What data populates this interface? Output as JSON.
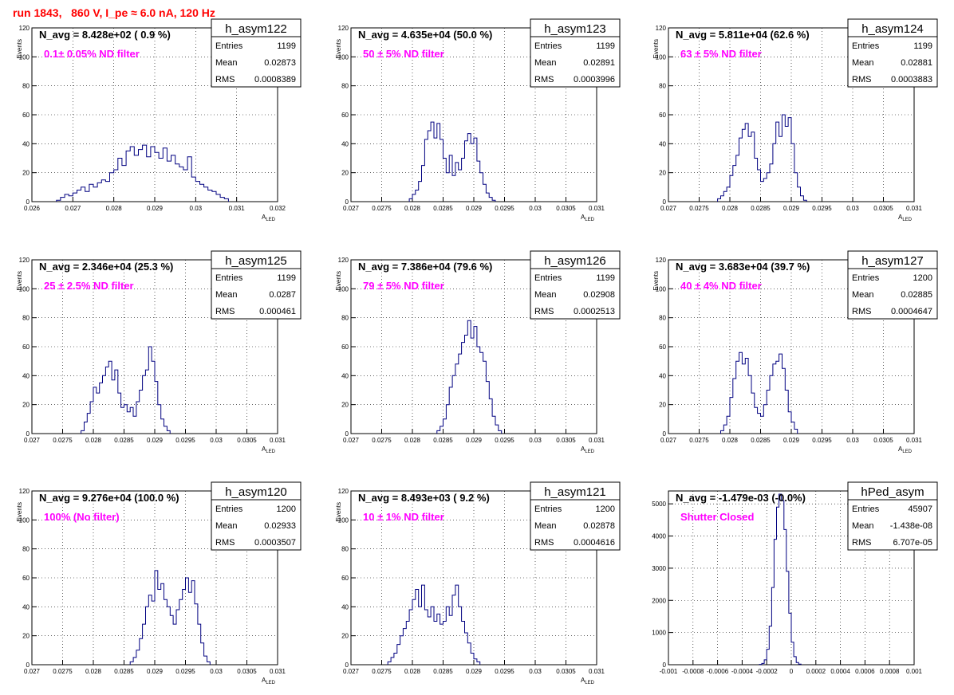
{
  "page": {
    "title": "run 1843,   860 V, I_pe ≈ 6.0 nA, 120 Hz"
  },
  "colors": {
    "background": "#ffffff",
    "hist_line": "#000080",
    "grid": "#000000",
    "annotation": "#ff00ff",
    "title": "#ff0000",
    "text": "#000000"
  },
  "stats_labels": {
    "entries": "Entries",
    "mean": "Mean",
    "rms": "RMS"
  },
  "chart_data": [
    {
      "type": "histogram",
      "name": "h_asym122",
      "navg": "N_avg = 8.428e+02 ( 0.9 %)",
      "note": "0.1± 0.05% ND filter",
      "entries": "1199",
      "mean": "0.02873",
      "rms": "0.0008389",
      "xlabel": "A",
      "xlabel_sub": "LED",
      "ylabel": "Events",
      "xlim": [
        0.026,
        0.032
      ],
      "ylim": [
        0,
        120
      ],
      "xticks": [
        0.026,
        0.027,
        0.028,
        0.029,
        0.03,
        0.031,
        0.032
      ],
      "xtick_labels": [
        "0.026",
        "0.027",
        "0.028",
        "0.029",
        "0.03",
        "0.031",
        "0.032"
      ],
      "yticks": [
        0,
        20,
        40,
        60,
        80,
        100,
        120
      ],
      "ytick_labels": [
        "0",
        "20",
        "40",
        "60",
        "80",
        "100",
        "120"
      ],
      "grid": true,
      "bin_start": 0.0266,
      "bin_width": 0.0001,
      "counts": [
        1,
        3,
        5,
        4,
        6,
        8,
        10,
        7,
        12,
        10,
        13,
        15,
        14,
        20,
        22,
        30,
        25,
        35,
        38,
        32,
        36,
        39,
        31,
        38,
        34,
        30,
        37,
        28,
        32,
        26,
        24,
        22,
        31,
        17,
        14,
        12,
        10,
        8,
        7,
        5,
        3,
        2
      ]
    },
    {
      "type": "histogram",
      "name": "h_asym123",
      "navg": "N_avg = 4.635e+04 (50.0 %)",
      "note": "50 ± 5% ND filter",
      "entries": "1199",
      "mean": "0.02891",
      "rms": "0.0003996",
      "xlabel": "A",
      "xlabel_sub": "LED",
      "ylabel": "Events",
      "xlim": [
        0.027,
        0.031
      ],
      "ylim": [
        0,
        120
      ],
      "xticks": [
        0.027,
        0.0275,
        0.028,
        0.0285,
        0.029,
        0.0295,
        0.03,
        0.0305,
        0.031
      ],
      "xtick_labels": [
        "0.027",
        "0.0275",
        "0.028",
        "0.0285",
        "0.029",
        "0.0295",
        "0.03",
        "0.0305",
        "0.031"
      ],
      "yticks": [
        0,
        20,
        40,
        60,
        80,
        100,
        120
      ],
      "ytick_labels": [
        "0",
        "20",
        "40",
        "60",
        "80",
        "100",
        "120"
      ],
      "grid": true,
      "bin_start": 0.02795,
      "bin_width": 5e-05,
      "counts": [
        2,
        5,
        8,
        14,
        25,
        43,
        49,
        55,
        44,
        54,
        43,
        30,
        20,
        32,
        18,
        27,
        22,
        30,
        42,
        47,
        40,
        44,
        28,
        20,
        12,
        6,
        3,
        1
      ]
    },
    {
      "type": "histogram",
      "name": "h_asym124",
      "navg": "N_avg = 5.811e+04 (62.6 %)",
      "note": "63 ± 5% ND filter",
      "entries": "1199",
      "mean": "0.02881",
      "rms": "0.0003883",
      "xlabel": "A",
      "xlabel_sub": "LED",
      "ylabel": "Events",
      "xlim": [
        0.027,
        0.031
      ],
      "ylim": [
        0,
        120
      ],
      "xticks": [
        0.027,
        0.0275,
        0.028,
        0.0285,
        0.029,
        0.0295,
        0.03,
        0.0305,
        0.031
      ],
      "xtick_labels": [
        "0.027",
        "0.0275",
        "0.028",
        "0.0285",
        "0.029",
        "0.0295",
        "0.03",
        "0.0305",
        "0.031"
      ],
      "yticks": [
        0,
        20,
        40,
        60,
        80,
        100,
        120
      ],
      "ytick_labels": [
        "0",
        "20",
        "40",
        "60",
        "80",
        "100",
        "120"
      ],
      "grid": true,
      "bin_start": 0.0278,
      "bin_width": 5e-05,
      "counts": [
        2,
        4,
        7,
        10,
        18,
        25,
        32,
        44,
        50,
        54,
        45,
        48,
        30,
        22,
        14,
        16,
        20,
        26,
        40,
        55,
        45,
        60,
        52,
        58,
        40,
        20,
        10,
        4,
        1
      ]
    },
    {
      "type": "histogram",
      "name": "h_asym125",
      "navg": "N_avg = 2.346e+04 (25.3 %)",
      "note": "25 ± 2.5% ND filter",
      "entries": "1199",
      "mean": "0.0287",
      "rms": "0.000461",
      "xlabel": "A",
      "xlabel_sub": "LED",
      "ylabel": "Events",
      "xlim": [
        0.027,
        0.031
      ],
      "ylim": [
        0,
        120
      ],
      "xticks": [
        0.027,
        0.0275,
        0.028,
        0.0285,
        0.029,
        0.0295,
        0.03,
        0.0305,
        0.031
      ],
      "xtick_labels": [
        "0.027",
        "0.0275",
        "0.028",
        "0.0285",
        "0.029",
        "0.0295",
        "0.03",
        "0.0305",
        "0.031"
      ],
      "yticks": [
        0,
        20,
        40,
        60,
        80,
        100,
        120
      ],
      "ytick_labels": [
        "0",
        "20",
        "40",
        "60",
        "80",
        "100",
        "120"
      ],
      "grid": true,
      "bin_start": 0.0278,
      "bin_width": 5e-05,
      "counts": [
        2,
        8,
        14,
        22,
        32,
        28,
        35,
        40,
        46,
        50,
        37,
        44,
        28,
        18,
        20,
        15,
        18,
        12,
        22,
        30,
        40,
        44,
        60,
        50,
        36,
        20,
        10,
        5,
        2
      ]
    },
    {
      "type": "histogram",
      "name": "h_asym126",
      "navg": "N_avg = 7.386e+04 (79.6 %)",
      "note": "79 ± 5% ND filter",
      "entries": "1199",
      "mean": "0.02908",
      "rms": "0.0002513",
      "xlabel": "A",
      "xlabel_sub": "LED",
      "ylabel": "Events",
      "xlim": [
        0.027,
        0.031
      ],
      "ylim": [
        0,
        120
      ],
      "xticks": [
        0.027,
        0.0275,
        0.028,
        0.0285,
        0.029,
        0.0295,
        0.03,
        0.0305,
        0.031
      ],
      "xtick_labels": [
        "0.027",
        "0.0275",
        "0.028",
        "0.0285",
        "0.029",
        "0.0295",
        "0.03",
        "0.0305",
        "0.031"
      ],
      "yticks": [
        0,
        20,
        40,
        60,
        80,
        100,
        120
      ],
      "ytick_labels": [
        "0",
        "20",
        "40",
        "60",
        "80",
        "100",
        "120"
      ],
      "grid": true,
      "bin_start": 0.0284,
      "bin_width": 5e-05,
      "counts": [
        2,
        5,
        10,
        20,
        32,
        40,
        48,
        55,
        63,
        68,
        78,
        66,
        74,
        60,
        56,
        50,
        36,
        24,
        12,
        6,
        2
      ]
    },
    {
      "type": "histogram",
      "name": "h_asym127",
      "navg": "N_avg = 3.683e+04 (39.7 %)",
      "note": "40 ± 4% ND filter",
      "entries": "1200",
      "mean": "0.02885",
      "rms": "0.0004647",
      "xlabel": "A",
      "xlabel_sub": "LED",
      "ylabel": "Events",
      "xlim": [
        0.027,
        0.031
      ],
      "ylim": [
        0,
        120
      ],
      "xticks": [
        0.027,
        0.0275,
        0.028,
        0.0285,
        0.029,
        0.0295,
        0.03,
        0.0305,
        0.031
      ],
      "xtick_labels": [
        "0.027",
        "0.0275",
        "0.028",
        "0.0285",
        "0.029",
        "0.0295",
        "0.03",
        "0.0305",
        "0.031"
      ],
      "yticks": [
        0,
        20,
        40,
        60,
        80,
        100,
        120
      ],
      "ytick_labels": [
        "0",
        "20",
        "40",
        "60",
        "80",
        "100",
        "120"
      ],
      "grid": true,
      "bin_start": 0.02785,
      "bin_width": 5e-05,
      "counts": [
        2,
        6,
        12,
        25,
        38,
        50,
        56,
        48,
        52,
        40,
        28,
        18,
        14,
        12,
        20,
        30,
        40,
        48,
        50,
        55,
        45,
        30,
        15,
        8,
        3
      ]
    },
    {
      "type": "histogram",
      "name": "h_asym120",
      "navg": "N_avg = 9.276e+04 (100.0 %)",
      "note": "100% (No filter)",
      "entries": "1200",
      "mean": "0.02933",
      "rms": "0.0003507",
      "xlabel": "A",
      "xlabel_sub": "LED",
      "ylabel": "Events",
      "xlim": [
        0.027,
        0.031
      ],
      "ylim": [
        0,
        120
      ],
      "xticks": [
        0.027,
        0.0275,
        0.028,
        0.0285,
        0.029,
        0.0295,
        0.03,
        0.0305,
        0.031
      ],
      "xtick_labels": [
        "0.027",
        "0.0275",
        "0.028",
        "0.0285",
        "0.029",
        "0.0295",
        "0.03",
        "0.0305",
        "0.031"
      ],
      "yticks": [
        0,
        20,
        40,
        60,
        80,
        100,
        120
      ],
      "ytick_labels": [
        "0",
        "20",
        "40",
        "60",
        "80",
        "100",
        "120"
      ],
      "grid": true,
      "bin_start": 0.0286,
      "bin_width": 5e-05,
      "counts": [
        2,
        5,
        10,
        18,
        28,
        40,
        48,
        44,
        65,
        52,
        56,
        45,
        40,
        34,
        28,
        38,
        45,
        52,
        60,
        50,
        58,
        42,
        28,
        15,
        6,
        2
      ]
    },
    {
      "type": "histogram",
      "name": "h_asym121",
      "navg": "N_avg = 8.493e+03 ( 9.2 %)",
      "note": "10 ± 1% ND filter",
      "entries": "1200",
      "mean": "0.02878",
      "rms": "0.0004616",
      "xlabel": "A",
      "xlabel_sub": "LED",
      "ylabel": "Events",
      "xlim": [
        0.027,
        0.031
      ],
      "ylim": [
        0,
        120
      ],
      "xticks": [
        0.027,
        0.0275,
        0.028,
        0.0285,
        0.029,
        0.0295,
        0.03,
        0.0305,
        0.031
      ],
      "xtick_labels": [
        "0.027",
        "0.0275",
        "0.028",
        "0.0285",
        "0.029",
        "0.0295",
        "0.03",
        "0.0305",
        "0.031"
      ],
      "yticks": [
        0,
        20,
        40,
        60,
        80,
        100,
        120
      ],
      "ytick_labels": [
        "0",
        "20",
        "40",
        "60",
        "80",
        "100",
        "120"
      ],
      "grid": true,
      "bin_start": 0.0276,
      "bin_width": 5e-05,
      "counts": [
        2,
        5,
        8,
        14,
        20,
        25,
        30,
        38,
        45,
        52,
        40,
        55,
        38,
        33,
        40,
        30,
        35,
        28,
        30,
        40,
        34,
        48,
        55,
        40,
        30,
        22,
        15,
        8,
        4,
        2
      ]
    },
    {
      "type": "histogram",
      "name": "hPed_asym",
      "navg": "N_avg = -1.479e-03 (-0.0%)",
      "note": "Shutter Closed",
      "entries": "45907",
      "mean": "-1.438e-08",
      "rms": "6.707e-05",
      "xlabel": "",
      "xlabel_sub": "",
      "ylabel": "",
      "xlim": [
        -0.001,
        0.001
      ],
      "ylim": [
        0,
        5400
      ],
      "xticks": [
        -0.001,
        -0.0008,
        -0.0006,
        -0.0004,
        -0.0002,
        0,
        0.0002,
        0.0004,
        0.0006,
        0.0008,
        0.001
      ],
      "xtick_labels": [
        "-0.001",
        "-0.0008",
        "-0.0006",
        "-0.0004",
        "-0.0002",
        "0",
        "0.0002",
        "0.0004",
        "0.0006",
        "0.0008",
        "0.001"
      ],
      "yticks": [
        0,
        1000,
        2000,
        3000,
        4000,
        5000
      ],
      "ytick_labels": [
        "0",
        "1000",
        "2000",
        "3000",
        "4000",
        "5000"
      ],
      "grid": true,
      "bin_start": -0.00026,
      "bin_width": 2e-05,
      "counts": [
        10,
        40,
        150,
        480,
        1200,
        2400,
        3900,
        4900,
        5300,
        5100,
        4200,
        2900,
        1600,
        700,
        250,
        70,
        20
      ]
    }
  ]
}
